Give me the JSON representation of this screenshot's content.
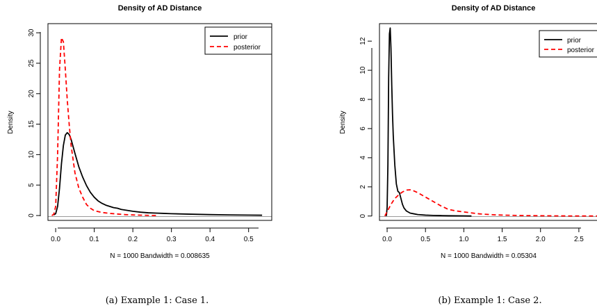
{
  "chart_data": [
    {
      "type": "line",
      "title": "Density of AD Distance",
      "xlabel": "N = 1000   Bandwidth = 0.008635",
      "ylabel": "Density",
      "caption": "(a) Example 1:  Case 1.",
      "xlim": [
        -0.02,
        0.56
      ],
      "ylim": [
        -0.8,
        31.5
      ],
      "xticks": [
        0.0,
        0.1,
        0.2,
        0.3,
        0.4,
        0.5
      ],
      "xtick_labels": [
        "0.0",
        "0.1",
        "0.2",
        "0.3",
        "0.4",
        "0.5"
      ],
      "yticks": [
        0,
        5,
        10,
        15,
        20,
        25,
        30
      ],
      "ytick_labels": [
        "0",
        "5",
        "10",
        "15",
        "20",
        "25",
        "30"
      ],
      "legend_position": "top-right",
      "colors": {
        "prior": "#000000",
        "posterior": "#ff0000"
      },
      "series": [
        {
          "name": "prior",
          "style": "solid",
          "x": [
            -0.005,
            0.0,
            0.005,
            0.01,
            0.015,
            0.02,
            0.025,
            0.03,
            0.035,
            0.04,
            0.05,
            0.06,
            0.07,
            0.08,
            0.09,
            0.1,
            0.11,
            0.12,
            0.13,
            0.14,
            0.15,
            0.16,
            0.17,
            0.18,
            0.2,
            0.22,
            0.24,
            0.26,
            0.28,
            0.3,
            0.35,
            0.4,
            0.45,
            0.5,
            0.535
          ],
          "y": [
            0.1,
            0.3,
            1.5,
            4.5,
            8.5,
            11.5,
            13.2,
            13.6,
            13.3,
            12.5,
            10.2,
            8.0,
            6.3,
            4.9,
            3.8,
            3.0,
            2.4,
            2.0,
            1.7,
            1.5,
            1.3,
            1.2,
            1.0,
            0.9,
            0.7,
            0.55,
            0.45,
            0.4,
            0.35,
            0.3,
            0.22,
            0.15,
            0.1,
            0.07,
            0.05
          ]
        },
        {
          "name": "posterior",
          "style": "dashed",
          "x": [
            -0.01,
            -0.005,
            0.0,
            0.005,
            0.01,
            0.015,
            0.02,
            0.025,
            0.03,
            0.035,
            0.04,
            0.05,
            0.06,
            0.07,
            0.08,
            0.09,
            0.1,
            0.12,
            0.14,
            0.16,
            0.18,
            0.2,
            0.22,
            0.24,
            0.26
          ],
          "y": [
            0.0,
            0.2,
            1.5,
            10.0,
            24.0,
            29.2,
            28.5,
            24.0,
            19.0,
            15.0,
            11.5,
            7.0,
            4.5,
            3.0,
            1.8,
            1.2,
            0.8,
            0.5,
            0.35,
            0.25,
            0.15,
            0.1,
            0.06,
            0.03,
            0.0
          ]
        }
      ]
    },
    {
      "type": "line",
      "title": "Density of AD Distance",
      "xlabel": "N = 1000   Bandwidth = 0.05304",
      "ylabel": "Density",
      "caption": "(b) Example 1:  Case 2.",
      "xlim": [
        -0.1,
        2.8
      ],
      "ylim": [
        -0.3,
        13.2
      ],
      "xticks": [
        0.0,
        0.5,
        1.0,
        1.5,
        2.0,
        2.5
      ],
      "xtick_labels": [
        "0.0",
        "0.5",
        "1.0",
        "1.5",
        "2.0",
        "2.5"
      ],
      "yticks": [
        0,
        2,
        4,
        6,
        8,
        10,
        12
      ],
      "ytick_labels": [
        "0",
        "2",
        "4",
        "6",
        "8",
        "10",
        "12"
      ],
      "legend_position": "top-right",
      "colors": {
        "prior": "#000000",
        "posterior": "#ff0000"
      },
      "series": [
        {
          "name": "prior",
          "style": "solid",
          "x": [
            -0.01,
            0.0,
            0.01,
            0.02,
            0.03,
            0.04,
            0.05,
            0.06,
            0.07,
            0.08,
            0.1,
            0.12,
            0.14,
            0.16,
            0.18,
            0.2,
            0.22,
            0.25,
            0.3,
            0.35,
            0.4,
            0.5,
            0.6,
            0.7,
            0.8,
            1.0,
            1.1
          ],
          "y": [
            0.0,
            0.6,
            3.5,
            9.5,
            12.5,
            12.9,
            11.5,
            9.0,
            7.0,
            5.5,
            3.5,
            2.2,
            1.7,
            1.6,
            1.2,
            0.8,
            0.55,
            0.35,
            0.2,
            0.15,
            0.1,
            0.06,
            0.04,
            0.03,
            0.02,
            0.01,
            0.0
          ]
        },
        {
          "name": "posterior",
          "style": "dashed",
          "x": [
            -0.03,
            0.0,
            0.05,
            0.1,
            0.15,
            0.2,
            0.25,
            0.3,
            0.35,
            0.4,
            0.5,
            0.6,
            0.7,
            0.8,
            0.9,
            1.0,
            1.2,
            1.4,
            1.6,
            1.8,
            2.0,
            2.2,
            2.4,
            2.6,
            2.8
          ],
          "y": [
            0.0,
            0.3,
            0.8,
            1.2,
            1.45,
            1.65,
            1.78,
            1.8,
            1.72,
            1.6,
            1.3,
            1.0,
            0.7,
            0.45,
            0.35,
            0.28,
            0.15,
            0.08,
            0.05,
            0.03,
            0.02,
            0.01,
            0.005,
            0.003,
            0.0
          ]
        }
      ]
    }
  ]
}
